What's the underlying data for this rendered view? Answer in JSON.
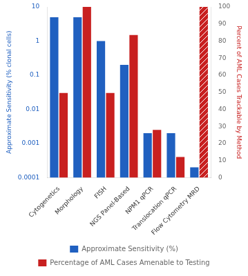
{
  "chart_data": {
    "type": "bar",
    "categories": [
      "Cytogenetics",
      "Morphology",
      "FISH",
      "NGS Panel-Based",
      "NPM1 qPCR",
      "Translocation qPCR",
      "Flow Cytometry MRD"
    ],
    "series": [
      {
        "name": "Approximate Sensitivity (%)",
        "color": "#2060c0",
        "values": [
          5,
          5,
          1,
          0.2,
          0.002,
          0.002,
          0.0002
        ]
      },
      {
        "name": "Percentage of AML Cases Amenable to Testing",
        "color": "#c82020",
        "values": [
          0.03,
          10,
          0.03,
          1.5,
          0.0025,
          0.0004,
          null
        ]
      },
      {
        "color": "#c82020",
        "values": [
          null,
          null,
          null,
          null,
          null,
          null,
          100
        ],
        "axis": "y2"
      }
    ],
    "ylabel": "Approximate Sensitivity (% clonal cells)",
    "y2label": "Percent of AML Cases Trackable by Method",
    "log": "y",
    "ylim": [
      0.0001,
      10
    ],
    "yticks": [
      0.0001,
      0.001,
      0.01,
      0.1,
      1,
      10
    ],
    "y2lim": [
      0,
      100
    ],
    "y2ticks": [
      0,
      10,
      20,
      30,
      40,
      50,
      60,
      70,
      80,
      90,
      100
    ],
    "grid": false,
    "legend": "bottom"
  }
}
